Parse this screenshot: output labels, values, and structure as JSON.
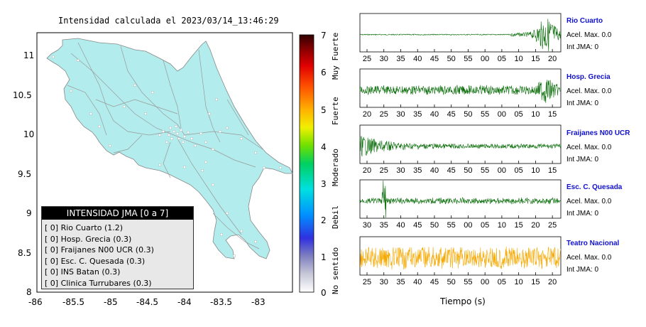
{
  "map": {
    "title": "Intensidad calculada el 2023/03/14_13:46:29",
    "x_ticks": [
      "-86",
      "-85.5",
      "-85",
      "-84.5",
      "-84",
      "-83.5",
      "-83"
    ],
    "y_ticks": [
      "11",
      "10.5",
      "10",
      "9.5",
      "9",
      "8.5",
      "8"
    ],
    "land_color": "#b2ecec",
    "road_color": "#999999"
  },
  "legend": {
    "header": "INTENSIDAD JMA [0 a 7]",
    "items": [
      "[ 0] Rio Cuarto (1.2)",
      "[ 0] Hosp. Grecia (0.3)",
      "[ 0] Fraijanes N00 UCR (0.3)",
      "[ 0] Esc. C. Quesada (0.3)",
      "[ 0] INS Batan (0.3)",
      "[ 0] Clinica Turrubares (0.3)"
    ]
  },
  "colorbar": {
    "ticks": [
      "7",
      "6",
      "5",
      "4",
      "3",
      "2",
      "1",
      "0"
    ],
    "labels": [
      "Muy Fuerte",
      "Fuerte",
      "Moderado",
      "Debil",
      "No sentido"
    ]
  },
  "stations": [
    {
      "name": "Rio Cuarto",
      "acel": "Acel. Max. 0.0",
      "int": "Int JMA: 0",
      "color": "#0b6e0b",
      "ticks": [
        "25",
        "30",
        "35",
        "40",
        "45",
        "50",
        "55",
        "00",
        "05",
        "10",
        "15",
        "20"
      ]
    },
    {
      "name": "Hosp. Grecia",
      "acel": "Acel. Max. 0.0",
      "int": "Int JMA: 0",
      "color": "#0b6e0b",
      "ticks": [
        "20",
        "25",
        "30",
        "35",
        "40",
        "45",
        "50",
        "55",
        "00",
        "05",
        "10",
        "15"
      ]
    },
    {
      "name": "Fraijanes N00 UCR",
      "acel": "Acel. Max. 0.0",
      "int": "Int JMA: 0",
      "color": "#0b6e0b",
      "ticks": [
        "20",
        "25",
        "30",
        "35",
        "40",
        "45",
        "50",
        "55",
        "00",
        "05",
        "10",
        "15"
      ]
    },
    {
      "name": "Esc. C. Quesada",
      "acel": "Acel. Max. 0.0",
      "int": "Int JMA: 0",
      "color": "#0b6e0b",
      "ticks": [
        "30",
        "35",
        "40",
        "45",
        "50",
        "55",
        "00",
        "05",
        "10",
        "15",
        "20",
        "25"
      ]
    },
    {
      "name": "Teatro Nacional",
      "acel": "Acel. Max. 0.0",
      "int": "Int JMA: 0",
      "color": "#f5a800",
      "ticks": [
        "25",
        "30",
        "35",
        "40",
        "45",
        "50",
        "55",
        "00",
        "05",
        "10",
        "15",
        "20"
      ]
    }
  ],
  "xlabel": "Tiempo (s)"
}
